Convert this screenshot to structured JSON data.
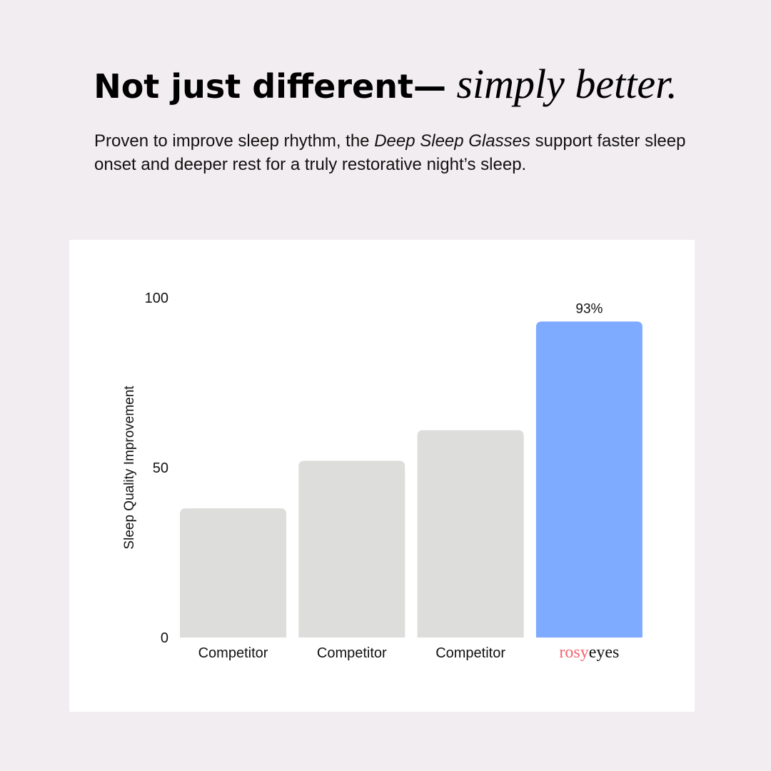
{
  "headline": {
    "bold": "Not just different—",
    "italic": " simply better."
  },
  "subtitle": {
    "pre": "Proven to improve sleep rhythm, the ",
    "product": "Deep Sleep Glasses",
    "post": " support faster sleep onset and deeper rest for a truly restorative night’s sleep."
  },
  "chart_data": {
    "type": "bar",
    "title": "",
    "xlabel": "",
    "ylabel": "Sleep Quality Improvement",
    "ylim": [
      0,
      100
    ],
    "yticks": [
      "0",
      "50",
      "100"
    ],
    "grid": false,
    "categories": [
      "Competitor",
      "Competitor",
      "Competitor",
      "rosyeyes"
    ],
    "values": [
      38,
      52,
      61,
      93
    ],
    "data_labels": [
      "",
      "",
      "",
      "93%"
    ],
    "colors": [
      "#dddddb",
      "#dddddb",
      "#dddddb",
      "#7eaaff"
    ],
    "logo": {
      "part1": "rosy",
      "part2": "eyes",
      "color1": "#f4646e",
      "color2": "#111111"
    }
  }
}
